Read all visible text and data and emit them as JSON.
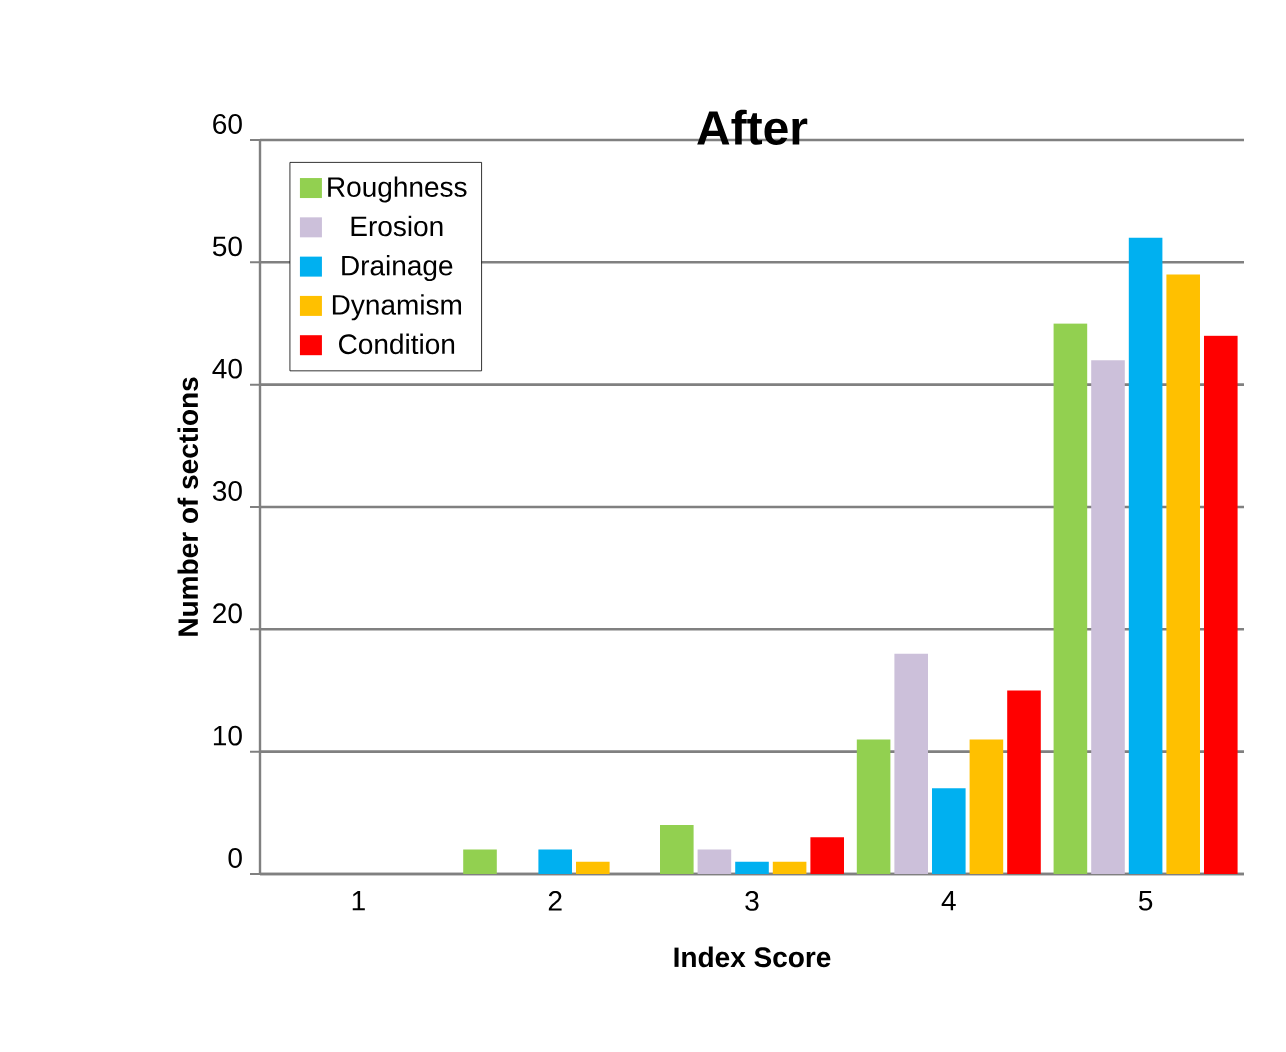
{
  "chart_data": {
    "type": "bar",
    "title": "After",
    "xlabel": "Index Score",
    "ylabel": "Number of sections",
    "categories": [
      "1",
      "2",
      "3",
      "4",
      "5"
    ],
    "series": [
      {
        "name": "Roughness",
        "color": "#92d050",
        "values": [
          0,
          2,
          4,
          11,
          45
        ]
      },
      {
        "name": "Erosion",
        "color": "#ccc0da",
        "values": [
          0,
          0,
          2,
          18,
          42
        ]
      },
      {
        "name": "Drainage",
        "color": "#00b0f0",
        "values": [
          0,
          2,
          1,
          7,
          52
        ]
      },
      {
        "name": "Dynamism",
        "color": "#ffc000",
        "values": [
          0,
          1,
          1,
          11,
          49
        ]
      },
      {
        "name": "Condition",
        "color": "#ff0000",
        "values": [
          0,
          0,
          3,
          15,
          44
        ]
      }
    ],
    "ylim": [
      0,
      60
    ],
    "yticks": [
      0,
      10,
      20,
      30,
      40,
      50,
      60
    ],
    "grid": "y",
    "legend": "top left"
  }
}
